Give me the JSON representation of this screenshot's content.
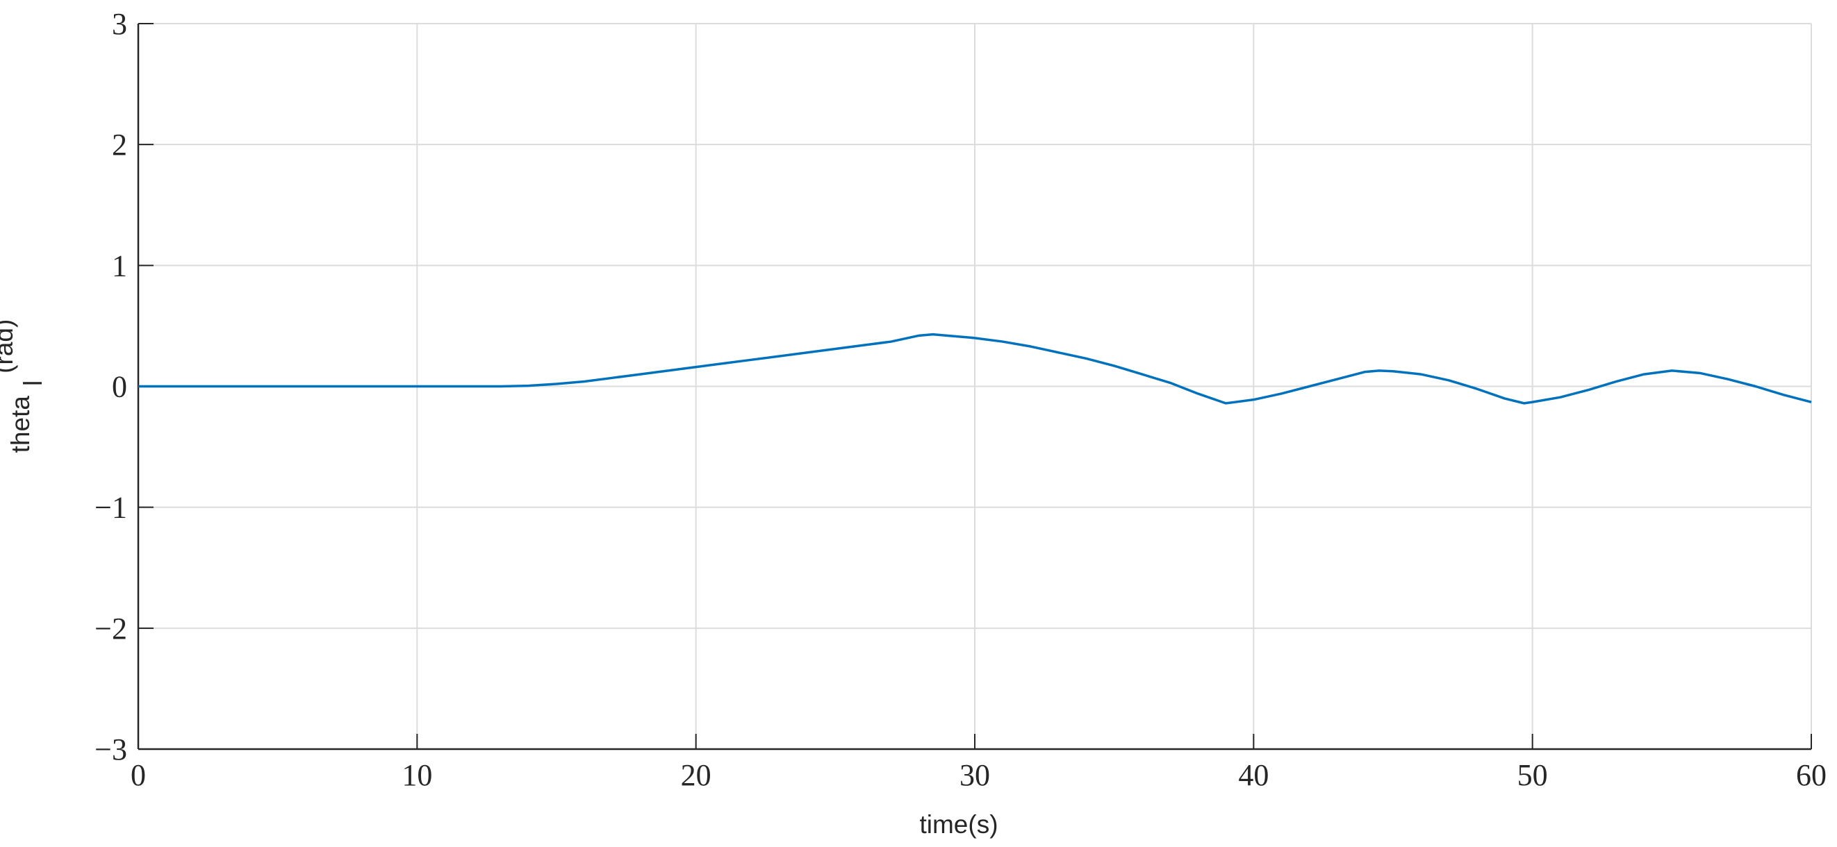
{
  "chart_data": {
    "type": "line",
    "xlabel": "time(s)",
    "ylabel": [
      "theta",
      "l",
      "(rad)"
    ],
    "x": [
      0,
      5,
      10,
      13,
      14,
      15,
      16,
      17,
      18,
      19,
      20,
      21,
      22,
      23,
      24,
      25,
      26,
      27,
      28,
      28.5,
      29,
      30,
      31,
      32,
      33,
      34,
      35,
      36,
      37,
      38,
      39,
      40,
      41,
      42,
      43,
      44,
      44.5,
      45,
      46,
      47,
      48,
      49,
      49.7,
      50,
      51,
      52,
      53,
      54,
      55,
      56,
      57,
      58,
      59,
      60
    ],
    "series": [
      {
        "color": "#0072bd",
        "values": [
          0,
          0,
          0,
          0,
          0.005,
          0.02,
          0.04,
          0.07,
          0.1,
          0.13,
          0.16,
          0.19,
          0.22,
          0.25,
          0.28,
          0.31,
          0.34,
          0.37,
          0.42,
          0.43,
          0.42,
          0.4,
          0.37,
          0.33,
          0.28,
          0.23,
          0.17,
          0.1,
          0.03,
          -0.06,
          -0.14,
          -0.11,
          -0.06,
          0,
          0.06,
          0.12,
          0.13,
          0.125,
          0.1,
          0.05,
          -0.02,
          -0.1,
          -0.14,
          -0.13,
          -0.09,
          -0.03,
          0.04,
          0.1,
          0.13,
          0.11,
          0.06,
          0,
          -0.07,
          -0.13
        ]
      }
    ],
    "xlim": [
      0,
      60
    ],
    "xticks": [
      0,
      10,
      20,
      30,
      40,
      50,
      60
    ],
    "ylim": [
      -3,
      3
    ],
    "yticks": [
      {
        "value": -3,
        "label": "−3"
      },
      {
        "value": -2,
        "label": "−2"
      },
      {
        "value": -1,
        "label": "−1"
      },
      0,
      1,
      2,
      3
    ],
    "grid": true
  }
}
